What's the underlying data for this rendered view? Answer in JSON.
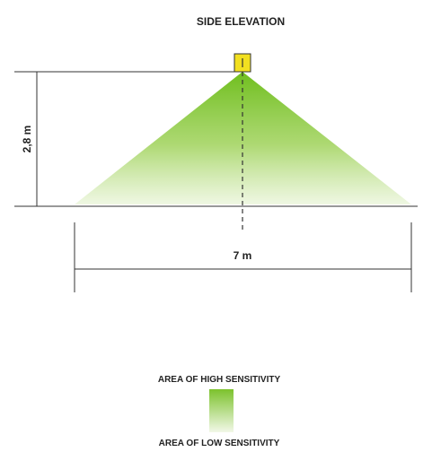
{
  "title": "SIDE ELEVATION",
  "height_label": "2,8 m",
  "width_label": "7 m",
  "legend": {
    "high_label": "AREA OF HIGH SENSITIVITY",
    "low_label": "AREA OF LOW SENSITIVITY"
  },
  "colors": {
    "high_sensitivity": "#7cc22c",
    "low_sensitivity": "#eef6e0",
    "sensor": "#f2e020",
    "line": "#333333"
  }
}
